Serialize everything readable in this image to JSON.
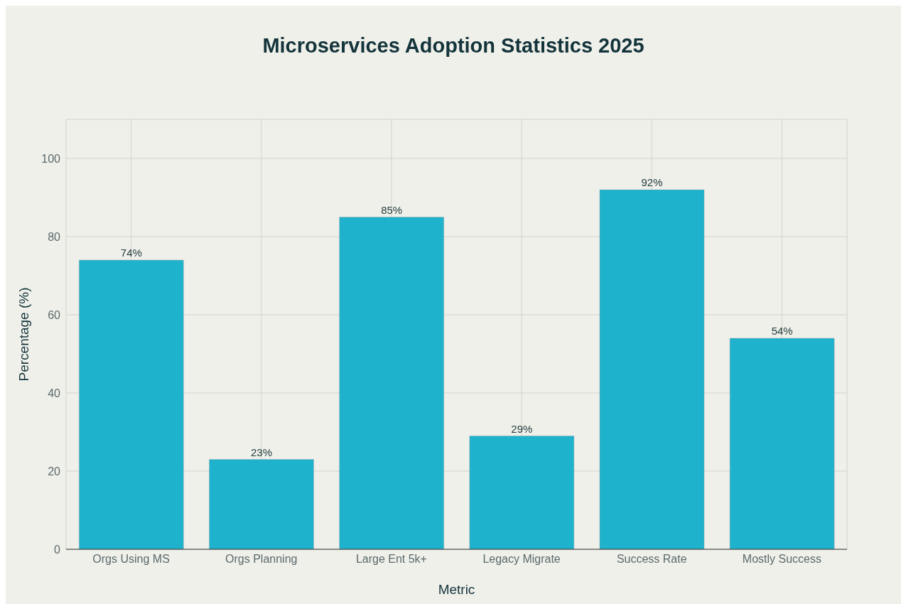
{
  "chart_data": {
    "type": "bar",
    "title": "Microservices Adoption Statistics 2025",
    "xlabel": "Metric",
    "ylabel": "Percentage (%)",
    "categories": [
      "Orgs Using MS",
      "Orgs Planning",
      "Large Ent 5k+",
      "Legacy Migrate",
      "Success Rate",
      "Mostly Success"
    ],
    "values": [
      74,
      23,
      85,
      29,
      92,
      54
    ],
    "value_labels": [
      "74%",
      "23%",
      "85%",
      "29%",
      "92%",
      "54%"
    ],
    "color": "#1fb2cc",
    "ylim": [
      0,
      110
    ],
    "yticks": [
      0,
      20,
      40,
      60,
      80,
      100
    ],
    "grid": true
  }
}
